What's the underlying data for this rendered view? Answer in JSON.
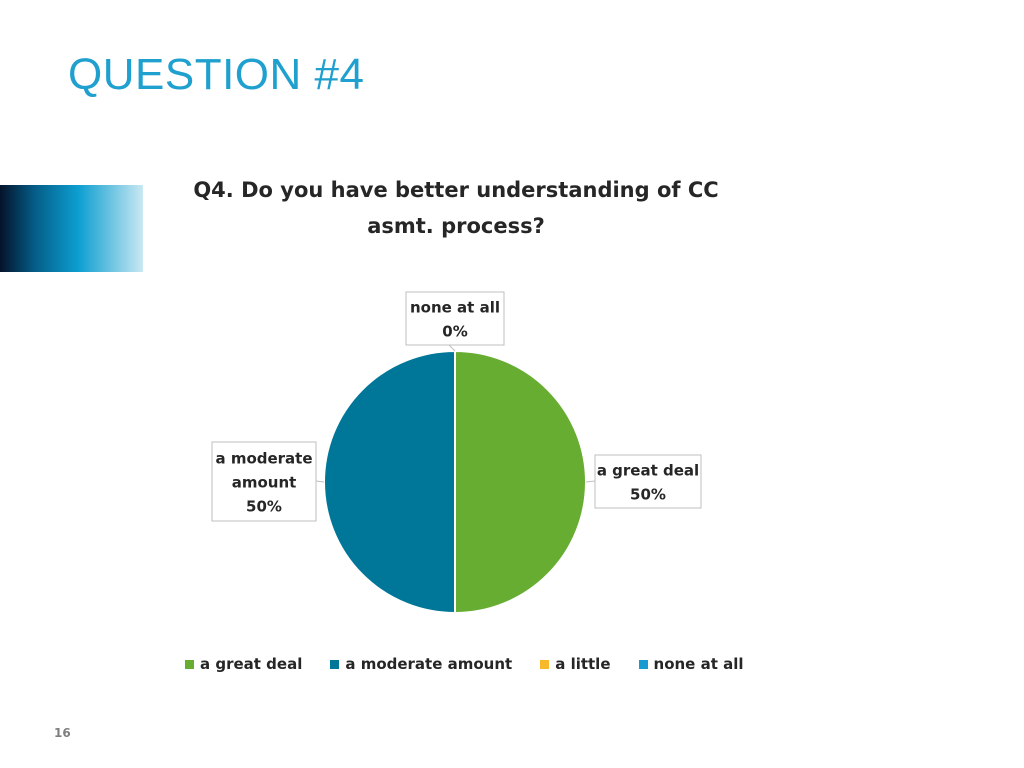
{
  "slide": {
    "title": "QUESTION #4",
    "page_number": "16",
    "title_color": "#1fa0cf"
  },
  "chart_data": {
    "type": "pie",
    "title": "Q4. Do you have better understanding of CC asmt. process?",
    "title_lines": [
      "Q4. Do you have better understanding of CC",
      "asmt. process?"
    ],
    "categories": [
      "a great deal",
      "a moderate amount",
      "a little",
      "none at all"
    ],
    "values": [
      50,
      50,
      0,
      0
    ],
    "units": "%",
    "colors": [
      "#66ad32",
      "#007799",
      "#f7b82c",
      "#189bce"
    ],
    "data_labels": [
      {
        "category": "a great deal",
        "lines": [
          "a great deal",
          "50%"
        ]
      },
      {
        "category": "a moderate amount",
        "lines": [
          "a moderate",
          "amount",
          "50%"
        ]
      },
      {
        "category": "none at all",
        "lines": [
          "none at all",
          "0%"
        ]
      }
    ],
    "legend_position": "bottom"
  }
}
